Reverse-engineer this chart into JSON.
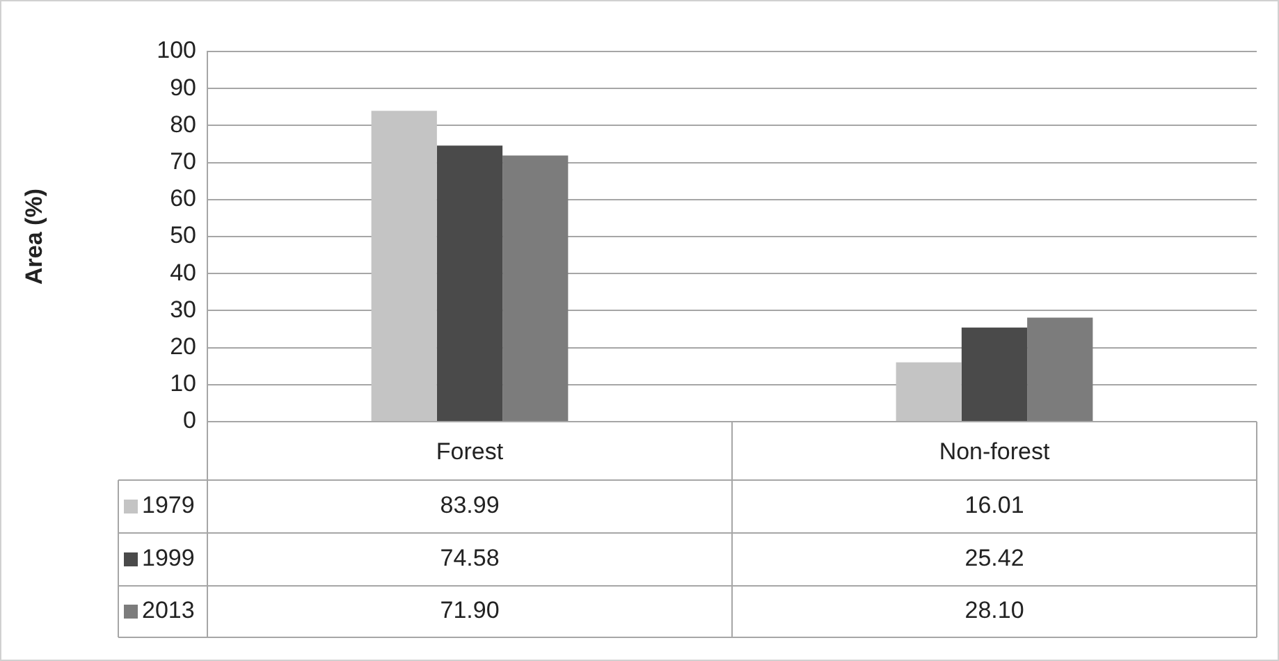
{
  "chart_data": {
    "type": "bar",
    "ylabel": "Area (%)",
    "categories": [
      "Forest",
      "Non-forest"
    ],
    "series": [
      {
        "name": "1979",
        "color": "#c4c4c4",
        "values": [
          83.99,
          16.01
        ],
        "value_labels": [
          "83.99",
          "16.01"
        ]
      },
      {
        "name": "1999",
        "color": "#4a4a4a",
        "values": [
          74.58,
          25.42
        ],
        "value_labels": [
          "74.58",
          "25.42"
        ]
      },
      {
        "name": "2013",
        "color": "#7c7c7c",
        "values": [
          71.9,
          28.1
        ],
        "value_labels": [
          "71.90",
          "28.10"
        ]
      }
    ],
    "ylim": [
      0,
      100
    ],
    "yticks": [
      0,
      10,
      20,
      30,
      40,
      50,
      60,
      70,
      80,
      90,
      100
    ],
    "grid": "y",
    "legend": "bottom left"
  }
}
